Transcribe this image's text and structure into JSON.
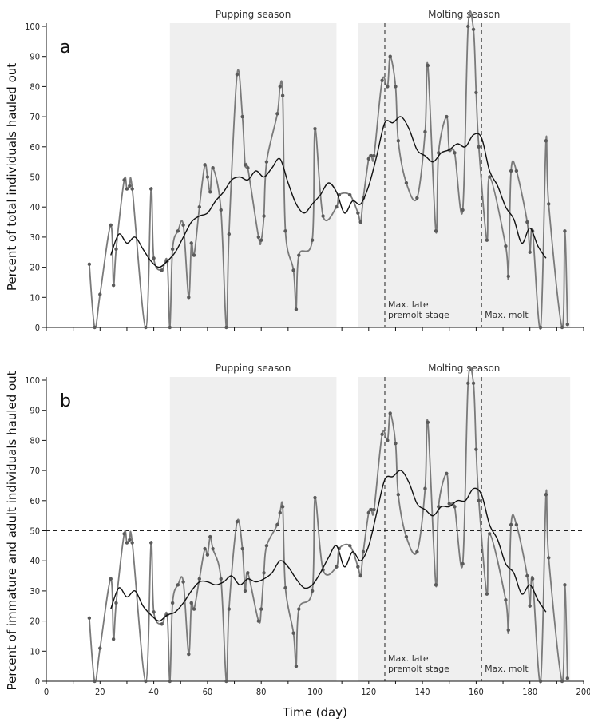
{
  "chart_data": [
    {
      "type": "line",
      "panel_label": "a",
      "ylabel": "Percent of total individuals hauled out",
      "xlim": [
        0,
        200
      ],
      "ylim": [
        0,
        100
      ],
      "y_ticks": [
        0,
        10,
        20,
        30,
        40,
        50,
        60,
        70,
        80,
        90,
        100
      ],
      "reference_line_y": 50,
      "shaded_regions": [
        {
          "label": "Pupping season",
          "x_start": 46,
          "x_end": 108
        },
        {
          "label": "Molting season",
          "x_start": 116,
          "x_end": 195
        }
      ],
      "vertical_markers": [
        {
          "x": 126,
          "label_lines": [
            "Max. late",
            "premolt stage"
          ]
        },
        {
          "x": 162,
          "label_lines": [
            "Max. molt"
          ]
        }
      ],
      "series": [
        {
          "name": "Daily haul-out",
          "color": "#7a7a7a",
          "x": [
            16,
            18,
            20,
            24,
            25,
            26,
            29,
            30,
            31,
            32,
            37,
            39,
            40,
            43,
            45,
            46,
            47,
            49,
            51,
            53,
            54,
            55,
            57,
            59,
            60,
            61,
            62,
            65,
            67,
            68,
            71,
            73,
            74,
            75,
            79,
            80,
            81,
            82,
            86,
            87,
            88,
            89,
            92,
            93,
            94,
            99,
            100,
            103,
            108,
            109,
            113,
            116,
            117,
            118,
            120,
            121,
            122,
            125,
            127,
            128,
            130,
            131,
            134,
            138,
            141,
            142,
            145,
            146,
            149,
            150,
            152,
            155,
            157,
            159,
            160,
            161,
            164,
            165,
            171,
            172,
            173,
            175,
            179,
            180,
            181,
            184,
            186,
            187,
            192,
            193,
            194
          ],
          "values": [
            21,
            0,
            11,
            34,
            14,
            26,
            49,
            46,
            47,
            46,
            0,
            46,
            23,
            19,
            22,
            0,
            26,
            32,
            34,
            10,
            28,
            24,
            40,
            54,
            50,
            45,
            53,
            39,
            0,
            31,
            84,
            70,
            54,
            53,
            30,
            29,
            37,
            55,
            71,
            80,
            77,
            32,
            19,
            6,
            24,
            29,
            66,
            37,
            40,
            44,
            44,
            38,
            35,
            43,
            56,
            57,
            57,
            82,
            80,
            90,
            80,
            62,
            48,
            43,
            65,
            87,
            32,
            58,
            70,
            59,
            58,
            39,
            100,
            99,
            78,
            60,
            29,
            50,
            27,
            17,
            52,
            52,
            35,
            25,
            32,
            0,
            62,
            41,
            0,
            32,
            1
          ],
          "smooth": true
        },
        {
          "name": "Running mean",
          "color": "#111111",
          "x": [
            24,
            27,
            30,
            33,
            36,
            39,
            42,
            45,
            48,
            51,
            54,
            57,
            60,
            63,
            66,
            69,
            72,
            75,
            78,
            81,
            84,
            87,
            90,
            93,
            96,
            99,
            102,
            105,
            108,
            111,
            114,
            117,
            120,
            123,
            126,
            129,
            132,
            135,
            138,
            141,
            144,
            147,
            150,
            153,
            156,
            159,
            162,
            165,
            168,
            171,
            174,
            177,
            180,
            183,
            186
          ],
          "values": [
            24,
            31,
            28,
            30,
            26,
            22,
            20,
            22,
            25,
            30,
            35,
            37,
            38,
            42,
            45,
            49,
            50,
            49,
            52,
            50,
            53,
            56,
            48,
            41,
            38,
            41,
            44,
            48,
            45,
            38,
            42,
            41,
            47,
            57,
            68,
            68,
            70,
            66,
            59,
            57,
            55,
            58,
            59,
            61,
            60,
            64,
            63,
            52,
            47,
            40,
            36,
            28,
            33,
            27,
            23
          ],
          "smooth": true
        }
      ]
    },
    {
      "type": "line",
      "panel_label": "b",
      "ylabel": "Percent of immature and adult individuals hauled out",
      "xlabel": "Time (day)",
      "xlim": [
        0,
        200
      ],
      "ylim": [
        0,
        100
      ],
      "x_ticks": [
        0,
        20,
        40,
        60,
        80,
        100,
        120,
        140,
        160,
        180,
        200
      ],
      "y_ticks": [
        0,
        10,
        20,
        30,
        40,
        50,
        60,
        70,
        80,
        90,
        100
      ],
      "reference_line_y": 50,
      "shaded_regions": [
        {
          "label": "Pupping season",
          "x_start": 46,
          "x_end": 108
        },
        {
          "label": "Molting season",
          "x_start": 116,
          "x_end": 195
        }
      ],
      "vertical_markers": [
        {
          "x": 126,
          "label_lines": [
            "Max. late",
            "premolt stage"
          ]
        },
        {
          "x": 162,
          "label_lines": [
            "Max. molt"
          ]
        }
      ],
      "series": [
        {
          "name": "Daily haul-out",
          "color": "#7a7a7a",
          "x": [
            16,
            18,
            20,
            24,
            25,
            26,
            29,
            30,
            31,
            32,
            37,
            39,
            40,
            43,
            45,
            46,
            47,
            49,
            51,
            53,
            54,
            55,
            57,
            59,
            60,
            61,
            62,
            65,
            67,
            68,
            71,
            73,
            74,
            75,
            79,
            80,
            81,
            82,
            86,
            87,
            88,
            89,
            92,
            93,
            94,
            99,
            100,
            103,
            108,
            109,
            113,
            116,
            117,
            118,
            120,
            121,
            122,
            125,
            127,
            128,
            130,
            131,
            134,
            138,
            141,
            142,
            145,
            146,
            149,
            150,
            152,
            155,
            157,
            159,
            160,
            161,
            164,
            165,
            171,
            172,
            173,
            175,
            179,
            180,
            181,
            184,
            186,
            187,
            192,
            193,
            194
          ],
          "values": [
            21,
            0,
            11,
            34,
            14,
            26,
            49,
            46,
            47,
            46,
            0,
            46,
            23,
            19,
            22,
            0,
            26,
            32,
            33,
            9,
            26,
            24,
            34,
            44,
            42,
            48,
            44,
            34,
            0,
            24,
            53,
            44,
            30,
            36,
            20,
            24,
            36,
            45,
            52,
            56,
            58,
            31,
            16,
            5,
            24,
            30,
            61,
            37,
            38,
            44,
            45,
            38,
            35,
            43,
            56,
            57,
            57,
            82,
            80,
            89,
            79,
            62,
            48,
            43,
            64,
            86,
            32,
            58,
            69,
            59,
            58,
            39,
            99,
            99,
            77,
            60,
            29,
            49,
            27,
            17,
            52,
            52,
            35,
            25,
            34,
            0,
            62,
            41,
            0,
            32,
            1
          ],
          "smooth": true
        },
        {
          "name": "Running mean",
          "color": "#111111",
          "x": [
            24,
            27,
            30,
            33,
            36,
            39,
            42,
            45,
            48,
            51,
            54,
            57,
            60,
            63,
            66,
            69,
            72,
            75,
            78,
            81,
            84,
            87,
            90,
            93,
            96,
            99,
            102,
            105,
            108,
            111,
            114,
            117,
            120,
            123,
            126,
            129,
            132,
            135,
            138,
            141,
            144,
            147,
            150,
            153,
            156,
            159,
            162,
            165,
            168,
            171,
            174,
            177,
            180,
            183,
            186
          ],
          "values": [
            24,
            31,
            28,
            30,
            25,
            22,
            20,
            22,
            23,
            26,
            30,
            33,
            33,
            32,
            33,
            35,
            32,
            34,
            33,
            34,
            36,
            40,
            38,
            34,
            31,
            32,
            36,
            41,
            45,
            38,
            43,
            40,
            45,
            56,
            67,
            68,
            70,
            66,
            59,
            57,
            55,
            58,
            58,
            60,
            60,
            64,
            62,
            52,
            47,
            39,
            36,
            29,
            32,
            27,
            23
          ],
          "smooth": true
        }
      ]
    }
  ]
}
